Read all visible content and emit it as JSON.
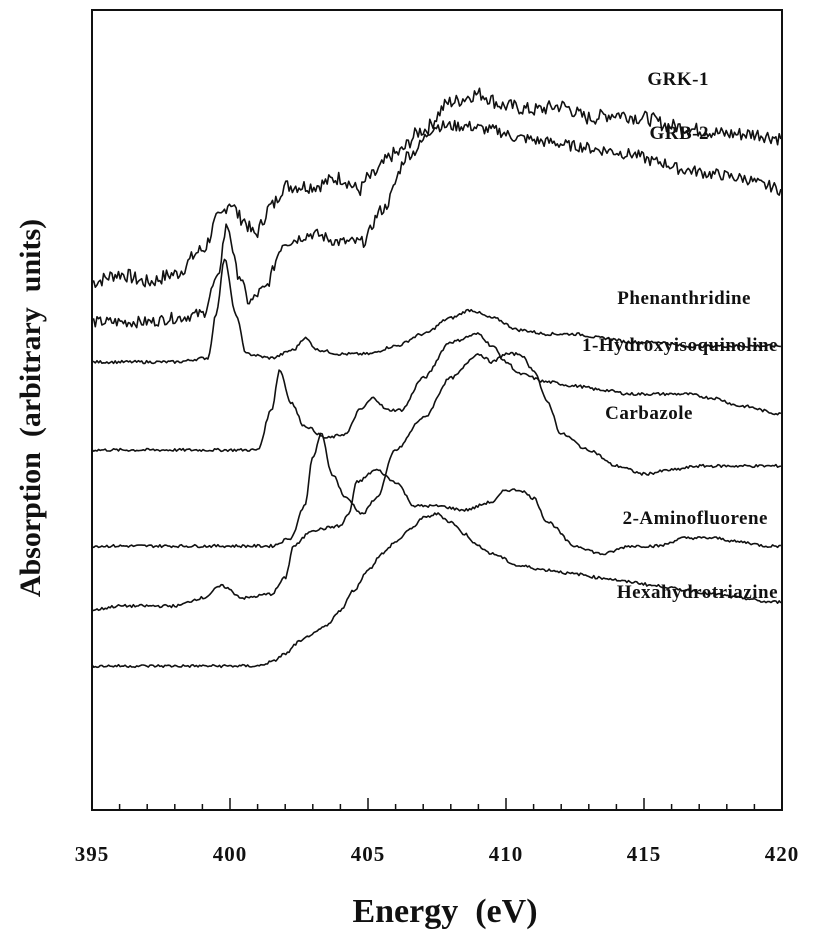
{
  "chart_data": {
    "type": "line",
    "xlabel": "Energy  (eV)",
    "ylabel": "Absorption  (arbitrary  units)",
    "xlim": [
      395,
      420
    ],
    "ylim": [
      0,
      100
    ],
    "x_ticks": [
      "395",
      "400",
      "405",
      "410",
      "415",
      "420"
    ],
    "y_tick_labels_shown": false,
    "grid": false,
    "legend": "none (series labeled directly on curves)",
    "line_color": "#111111",
    "series": [
      {
        "name": "GRK-1",
        "points": [
          [
            395,
            66
          ],
          [
            396,
            67
          ],
          [
            397,
            66
          ],
          [
            398,
            67
          ],
          [
            399,
            70
          ],
          [
            399.6,
            74
          ],
          [
            400,
            76
          ],
          [
            400.4,
            74
          ],
          [
            400.9,
            72
          ],
          [
            401.5,
            75.5
          ],
          [
            402,
            78
          ],
          [
            403,
            78
          ],
          [
            404,
            79
          ],
          [
            404.7,
            77.5
          ],
          [
            405,
            79
          ],
          [
            406,
            82
          ],
          [
            407,
            85
          ],
          [
            408,
            88.5
          ],
          [
            409,
            89.5
          ],
          [
            410,
            88
          ],
          [
            411,
            87.5
          ],
          [
            412,
            88
          ],
          [
            413,
            86.5
          ],
          [
            414,
            87
          ],
          [
            415,
            86.5
          ],
          [
            416,
            85.5
          ],
          [
            417,
            85
          ],
          [
            418,
            84.5
          ],
          [
            419,
            84.5
          ],
          [
            420,
            84
          ]
        ]
      },
      {
        "name": "GRB-2",
        "points": [
          [
            395,
            61
          ],
          [
            397,
            61
          ],
          [
            398,
            61.5
          ],
          [
            399,
            62
          ],
          [
            399.5,
            66
          ],
          [
            399.9,
            73
          ],
          [
            400.3,
            67
          ],
          [
            400.7,
            63.5
          ],
          [
            401.2,
            65
          ],
          [
            402,
            71
          ],
          [
            403,
            72
          ],
          [
            404,
            71
          ],
          [
            404.8,
            71
          ],
          [
            405.5,
            75
          ],
          [
            406.5,
            82
          ],
          [
            407.5,
            85.5
          ],
          [
            408.5,
            85.5
          ],
          [
            409.5,
            85
          ],
          [
            410.5,
            84
          ],
          [
            411.5,
            83.5
          ],
          [
            412.5,
            83
          ],
          [
            413.5,
            82.5
          ],
          [
            414.5,
            82
          ],
          [
            415.5,
            81
          ],
          [
            416.5,
            80
          ],
          [
            417.5,
            79.5
          ],
          [
            418.5,
            79
          ],
          [
            419.5,
            78
          ],
          [
            420,
            77.5
          ]
        ]
      },
      {
        "name": "Phenanthridine",
        "points": [
          [
            395,
            56
          ],
          [
            398,
            56
          ],
          [
            399.2,
            56.5
          ],
          [
            399.5,
            62
          ],
          [
            399.8,
            69
          ],
          [
            400.2,
            62
          ],
          [
            400.6,
            57
          ],
          [
            401.5,
            56.5
          ],
          [
            402.3,
            57.5
          ],
          [
            402.7,
            59
          ],
          [
            403.2,
            57.5
          ],
          [
            404,
            57
          ],
          [
            405,
            57
          ],
          [
            406,
            58
          ],
          [
            407,
            59.5
          ],
          [
            408,
            61.5
          ],
          [
            408.7,
            62.5
          ],
          [
            409.5,
            61.5
          ],
          [
            410.5,
            60
          ],
          [
            411.5,
            59.5
          ],
          [
            412.5,
            59.5
          ],
          [
            413.5,
            59
          ],
          [
            414.5,
            58.5
          ],
          [
            415.5,
            58.5
          ],
          [
            416.5,
            58
          ],
          [
            417.5,
            58
          ],
          [
            418.5,
            58
          ],
          [
            420,
            58
          ]
        ]
      },
      {
        "name": "1-Hydroxyisoquinoline",
        "points": [
          [
            395,
            45
          ],
          [
            400,
            45
          ],
          [
            401,
            45
          ],
          [
            401.5,
            50
          ],
          [
            401.8,
            55
          ],
          [
            402.2,
            51
          ],
          [
            402.7,
            48
          ],
          [
            403.5,
            46.5
          ],
          [
            404.2,
            47
          ],
          [
            404.7,
            50
          ],
          [
            405.2,
            51.5
          ],
          [
            405.7,
            50
          ],
          [
            406.2,
            50
          ],
          [
            407,
            54
          ],
          [
            408,
            58.5
          ],
          [
            409,
            59.5
          ],
          [
            409.5,
            58
          ],
          [
            410,
            56
          ],
          [
            410.5,
            54.5
          ],
          [
            411.5,
            53.5
          ],
          [
            412.5,
            53
          ],
          [
            413.5,
            52.5
          ],
          [
            414.5,
            52
          ],
          [
            415.5,
            52
          ],
          [
            416.5,
            52
          ],
          [
            417.5,
            51.5
          ],
          [
            418.5,
            50.5
          ],
          [
            420,
            49.5
          ]
        ]
      },
      {
        "name": "Carbazole",
        "points": [
          [
            395,
            33
          ],
          [
            400,
            33
          ],
          [
            401.5,
            33
          ],
          [
            402.2,
            34
          ],
          [
            402.7,
            38
          ],
          [
            403,
            44
          ],
          [
            403.3,
            47
          ],
          [
            403.7,
            42
          ],
          [
            404.2,
            39
          ],
          [
            404.8,
            37
          ],
          [
            405.3,
            39
          ],
          [
            406,
            45
          ],
          [
            407,
            49
          ],
          [
            408,
            54
          ],
          [
            409,
            57
          ],
          [
            409.5,
            56
          ],
          [
            410,
            57
          ],
          [
            410.5,
            57
          ],
          [
            411,
            55
          ],
          [
            411.5,
            51
          ],
          [
            412,
            47
          ],
          [
            413,
            45
          ],
          [
            414,
            43
          ],
          [
            415,
            42
          ],
          [
            416,
            42.5
          ],
          [
            417,
            43
          ],
          [
            418,
            43
          ],
          [
            419,
            43
          ],
          [
            420,
            43
          ]
        ]
      },
      {
        "name": "2-Aminofluorene",
        "points": [
          [
            395,
            25
          ],
          [
            396,
            25.5
          ],
          [
            397,
            25.5
          ],
          [
            398,
            25.5
          ],
          [
            399,
            26.5
          ],
          [
            399.7,
            28
          ],
          [
            400.5,
            26.5
          ],
          [
            401.5,
            27
          ],
          [
            402,
            29
          ],
          [
            402.3,
            33
          ],
          [
            403,
            35
          ],
          [
            404,
            35.5
          ],
          [
            404.3,
            37
          ],
          [
            404.6,
            41
          ],
          [
            405.3,
            42.5
          ],
          [
            406,
            41
          ],
          [
            406.7,
            38
          ],
          [
            407.5,
            38
          ],
          [
            408.5,
            37.5
          ],
          [
            409.5,
            38.5
          ],
          [
            410,
            40
          ],
          [
            410.5,
            40
          ],
          [
            411,
            39
          ],
          [
            411.5,
            36
          ],
          [
            412.5,
            33
          ],
          [
            413.5,
            32
          ],
          [
            414.5,
            33
          ],
          [
            415.5,
            33
          ],
          [
            416.5,
            34
          ],
          [
            417.5,
            34
          ],
          [
            418.5,
            33.5
          ],
          [
            419.5,
            33
          ],
          [
            420,
            33
          ]
        ]
      },
      {
        "name": "Hexahydrotriazine",
        "points": [
          [
            395,
            18
          ],
          [
            398,
            18
          ],
          [
            399,
            18
          ],
          [
            400,
            18
          ],
          [
            401,
            18
          ],
          [
            401.5,
            18.5
          ],
          [
            402,
            19.5
          ],
          [
            402.5,
            21
          ],
          [
            403,
            22
          ],
          [
            403.5,
            23
          ],
          [
            404,
            25
          ],
          [
            404.5,
            27.5
          ],
          [
            405,
            30
          ],
          [
            405.5,
            32
          ],
          [
            406,
            33.5
          ],
          [
            406.5,
            35
          ],
          [
            407,
            36.5
          ],
          [
            407.5,
            37
          ],
          [
            408,
            36
          ],
          [
            408.5,
            34.5
          ],
          [
            409,
            33
          ],
          [
            409.5,
            32
          ],
          [
            410.5,
            30.5
          ],
          [
            411.5,
            30
          ],
          [
            412.5,
            29.5
          ],
          [
            413.5,
            29
          ],
          [
            414.5,
            28.5
          ],
          [
            415.5,
            28
          ],
          [
            416.5,
            27.5
          ],
          [
            417.5,
            27
          ],
          [
            418.5,
            26.5
          ],
          [
            419.5,
            26
          ],
          [
            420,
            26
          ]
        ]
      }
    ],
    "labels": [
      "GRK-1",
      "GRB-2",
      "Phenanthridine",
      "1-Hydroxyisoquinoline",
      "Carbazole",
      "2-Aminofluorene",
      "Hexahydrotriazine"
    ]
  }
}
